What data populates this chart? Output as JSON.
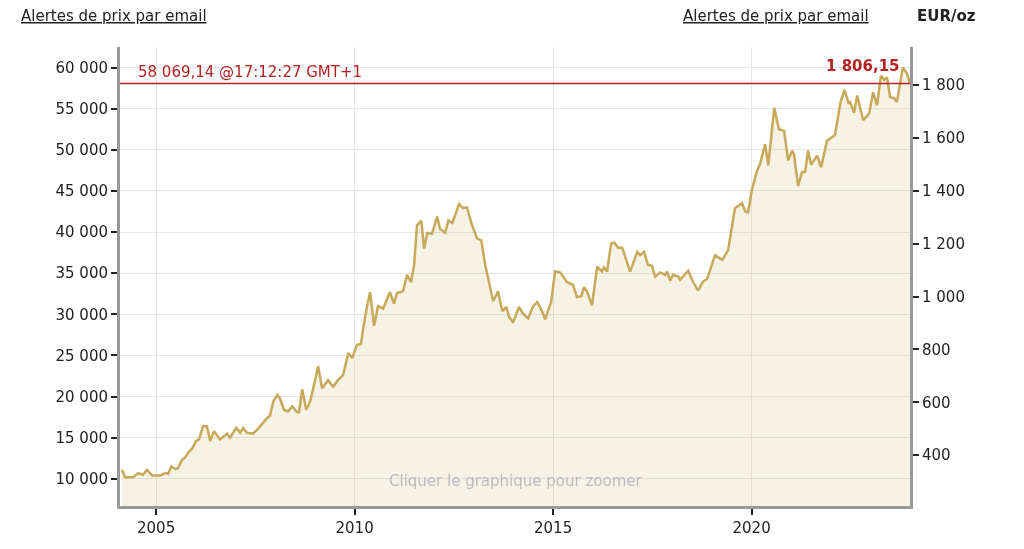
{
  "chart_data": {
    "type": "area",
    "x": [
      2004.14,
      2004.22,
      2004.42,
      2004.55,
      2004.67,
      2004.77,
      2004.9,
      2005.1,
      2005.23,
      2005.3,
      2005.38,
      2005.48,
      2005.55,
      2005.65,
      2005.73,
      2005.81,
      2005.91,
      2006.01,
      2006.08,
      2006.18,
      2006.28,
      2006.36,
      2006.46,
      2006.61,
      2006.79,
      2006.86,
      2007.02,
      2007.12,
      2007.19,
      2007.29,
      2007.44,
      2007.57,
      2007.8,
      2007.87,
      2007.95,
      2008.05,
      2008.12,
      2008.22,
      2008.32,
      2008.43,
      2008.55,
      2008.6,
      2008.68,
      2008.78,
      2008.88,
      2009.01,
      2009.08,
      2009.18,
      2009.33,
      2009.46,
      2009.58,
      2009.71,
      2009.84,
      2009.94,
      2010.06,
      2010.16,
      2010.21,
      2010.31,
      2010.39,
      2010.49,
      2010.59,
      2010.72,
      2010.82,
      2010.89,
      2010.99,
      2011.07,
      2011.22,
      2011.32,
      2011.42,
      2011.5,
      2011.57,
      2011.68,
      2011.75,
      2011.83,
      2011.95,
      2012.08,
      2012.15,
      2012.28,
      2012.36,
      2012.46,
      2012.63,
      2012.73,
      2012.83,
      2012.96,
      2013.09,
      2013.19,
      2013.29,
      2013.49,
      2013.61,
      2013.72,
      2013.82,
      2013.89,
      2013.99,
      2014.14,
      2014.24,
      2014.37,
      2014.5,
      2014.6,
      2014.72,
      2014.8,
      2014.95,
      2015.05,
      2015.18,
      2015.35,
      2015.5,
      2015.6,
      2015.71,
      2015.78,
      2015.86,
      2015.98,
      2016.11,
      2016.23,
      2016.28,
      2016.36,
      2016.46,
      2016.54,
      2016.64,
      2016.74,
      2016.94,
      2017.12,
      2017.19,
      2017.29,
      2017.39,
      2017.49,
      2017.57,
      2017.7,
      2017.82,
      2017.87,
      2017.95,
      2018.02,
      2018.15,
      2018.2,
      2018.4,
      2018.53,
      2018.65,
      2018.78,
      2018.88,
      2019.08,
      2019.26,
      2019.41,
      2019.58,
      2019.76,
      2019.84,
      2019.91,
      2020.01,
      2020.14,
      2020.21,
      2020.34,
      2020.42,
      2020.57,
      2020.69,
      2020.82,
      2020.92,
      2021.02,
      2021.07,
      2021.17,
      2021.27,
      2021.35,
      2021.42,
      2021.5,
      2021.65,
      2021.75,
      2021.9,
      2022.1,
      2022.24,
      2022.34,
      2022.44,
      2022.48,
      2022.58,
      2022.66,
      2022.81,
      2022.96,
      2023.06,
      2023.16,
      2023.26,
      2023.34,
      2023.41,
      2023.49,
      2023.59,
      2023.66,
      2023.81,
      2023.92,
      2023.99
    ],
    "series": [
      {
        "color": "#c8a95a",
        "values": [
          11100,
          10200,
          10200,
          10700,
          10500,
          11100,
          10400,
          10400,
          10700,
          10600,
          11500,
          11200,
          11300,
          12300,
          12600,
          13200,
          13700,
          14600,
          14800,
          16400,
          16400,
          14600,
          15800,
          14800,
          15500,
          15000,
          16200,
          15600,
          16200,
          15600,
          15500,
          16100,
          17400,
          17700,
          19400,
          20200,
          19800,
          18400,
          18200,
          18800,
          18100,
          18100,
          20900,
          18400,
          19400,
          22100,
          23700,
          21000,
          22000,
          21200,
          22000,
          22600,
          25300,
          24700,
          26300,
          26400,
          28100,
          30900,
          32700,
          28600,
          31000,
          30700,
          31900,
          32700,
          31300,
          32600,
          32800,
          34800,
          33900,
          36000,
          40800,
          41400,
          38000,
          39900,
          39800,
          41900,
          40400,
          39900,
          41400,
          41100,
          43400,
          42900,
          43000,
          40800,
          39200,
          39000,
          36000,
          31600,
          32800,
          30400,
          30900,
          29700,
          29000,
          30900,
          30100,
          29500,
          31000,
          31500,
          30400,
          29400,
          31500,
          35200,
          35100,
          33900,
          33600,
          32100,
          32200,
          33300,
          32700,
          31100,
          35800,
          35200,
          35700,
          35200,
          38600,
          38700,
          38100,
          38100,
          35200,
          37600,
          37200,
          37600,
          36000,
          35900,
          34600,
          35100,
          34800,
          35200,
          34100,
          34800,
          34600,
          34200,
          35300,
          33900,
          32900,
          34000,
          34300,
          37200,
          36600,
          37800,
          42900,
          43500,
          42500,
          42400,
          45200,
          47500,
          48200,
          50700,
          48100,
          55100,
          52500,
          52300,
          48700,
          49900,
          49400,
          45600,
          47300,
          47300,
          49900,
          48200,
          49300,
          47900,
          51100,
          51800,
          55800,
          57300,
          55700,
          55800,
          54500,
          56600,
          53600,
          54400,
          57000,
          55400,
          59000,
          58500,
          58800,
          56400,
          56300,
          55800,
          60000,
          59200,
          58100
        ]
      }
    ],
    "xlim": [
      2004.09,
      2023.99
    ],
    "xticks": [
      2005,
      2010,
      2015,
      2020
    ],
    "ylim": [
      6700,
      62500
    ],
    "yticks": [
      {
        "value": 10000,
        "label": "10 000"
      },
      {
        "value": 15000,
        "label": "15 000"
      },
      {
        "value": 20000,
        "label": "20 000"
      },
      {
        "value": 25000,
        "label": "25 000"
      },
      {
        "value": 30000,
        "label": "30 000"
      },
      {
        "value": 35000,
        "label": "35 000"
      },
      {
        "value": 40000,
        "label": "40 000"
      },
      {
        "value": 45000,
        "label": "45 000"
      },
      {
        "value": 50000,
        "label": "50 000"
      },
      {
        "value": 55000,
        "label": "55 000"
      },
      {
        "value": 60000,
        "label": "60 000"
      }
    ],
    "y2lim": [
      208,
      1944
    ],
    "y2ticks": [
      400,
      600,
      800,
      {
        "value": 1000,
        "label": "1 000"
      },
      {
        "value": 1200,
        "label": "1 200"
      },
      {
        "value": 1400,
        "label": "1 400"
      },
      {
        "value": 1600,
        "label": "1 600"
      },
      {
        "value": 1800,
        "label": "1 800"
      }
    ],
    "y2label": "EUR/oz",
    "ref_lines": [
      {
        "axis": "y",
        "value": 58069.14,
        "label": "58 069,14 @17:12:27 GMT+1",
        "color": "#b22222"
      }
    ],
    "annotations": [
      "Alertes de prix par email",
      "Alertes de prix par email",
      "Cliquer le graphique pour zoomer",
      "1 806,15"
    ],
    "grid": true,
    "marker": "none",
    "line_style": "solid"
  }
}
